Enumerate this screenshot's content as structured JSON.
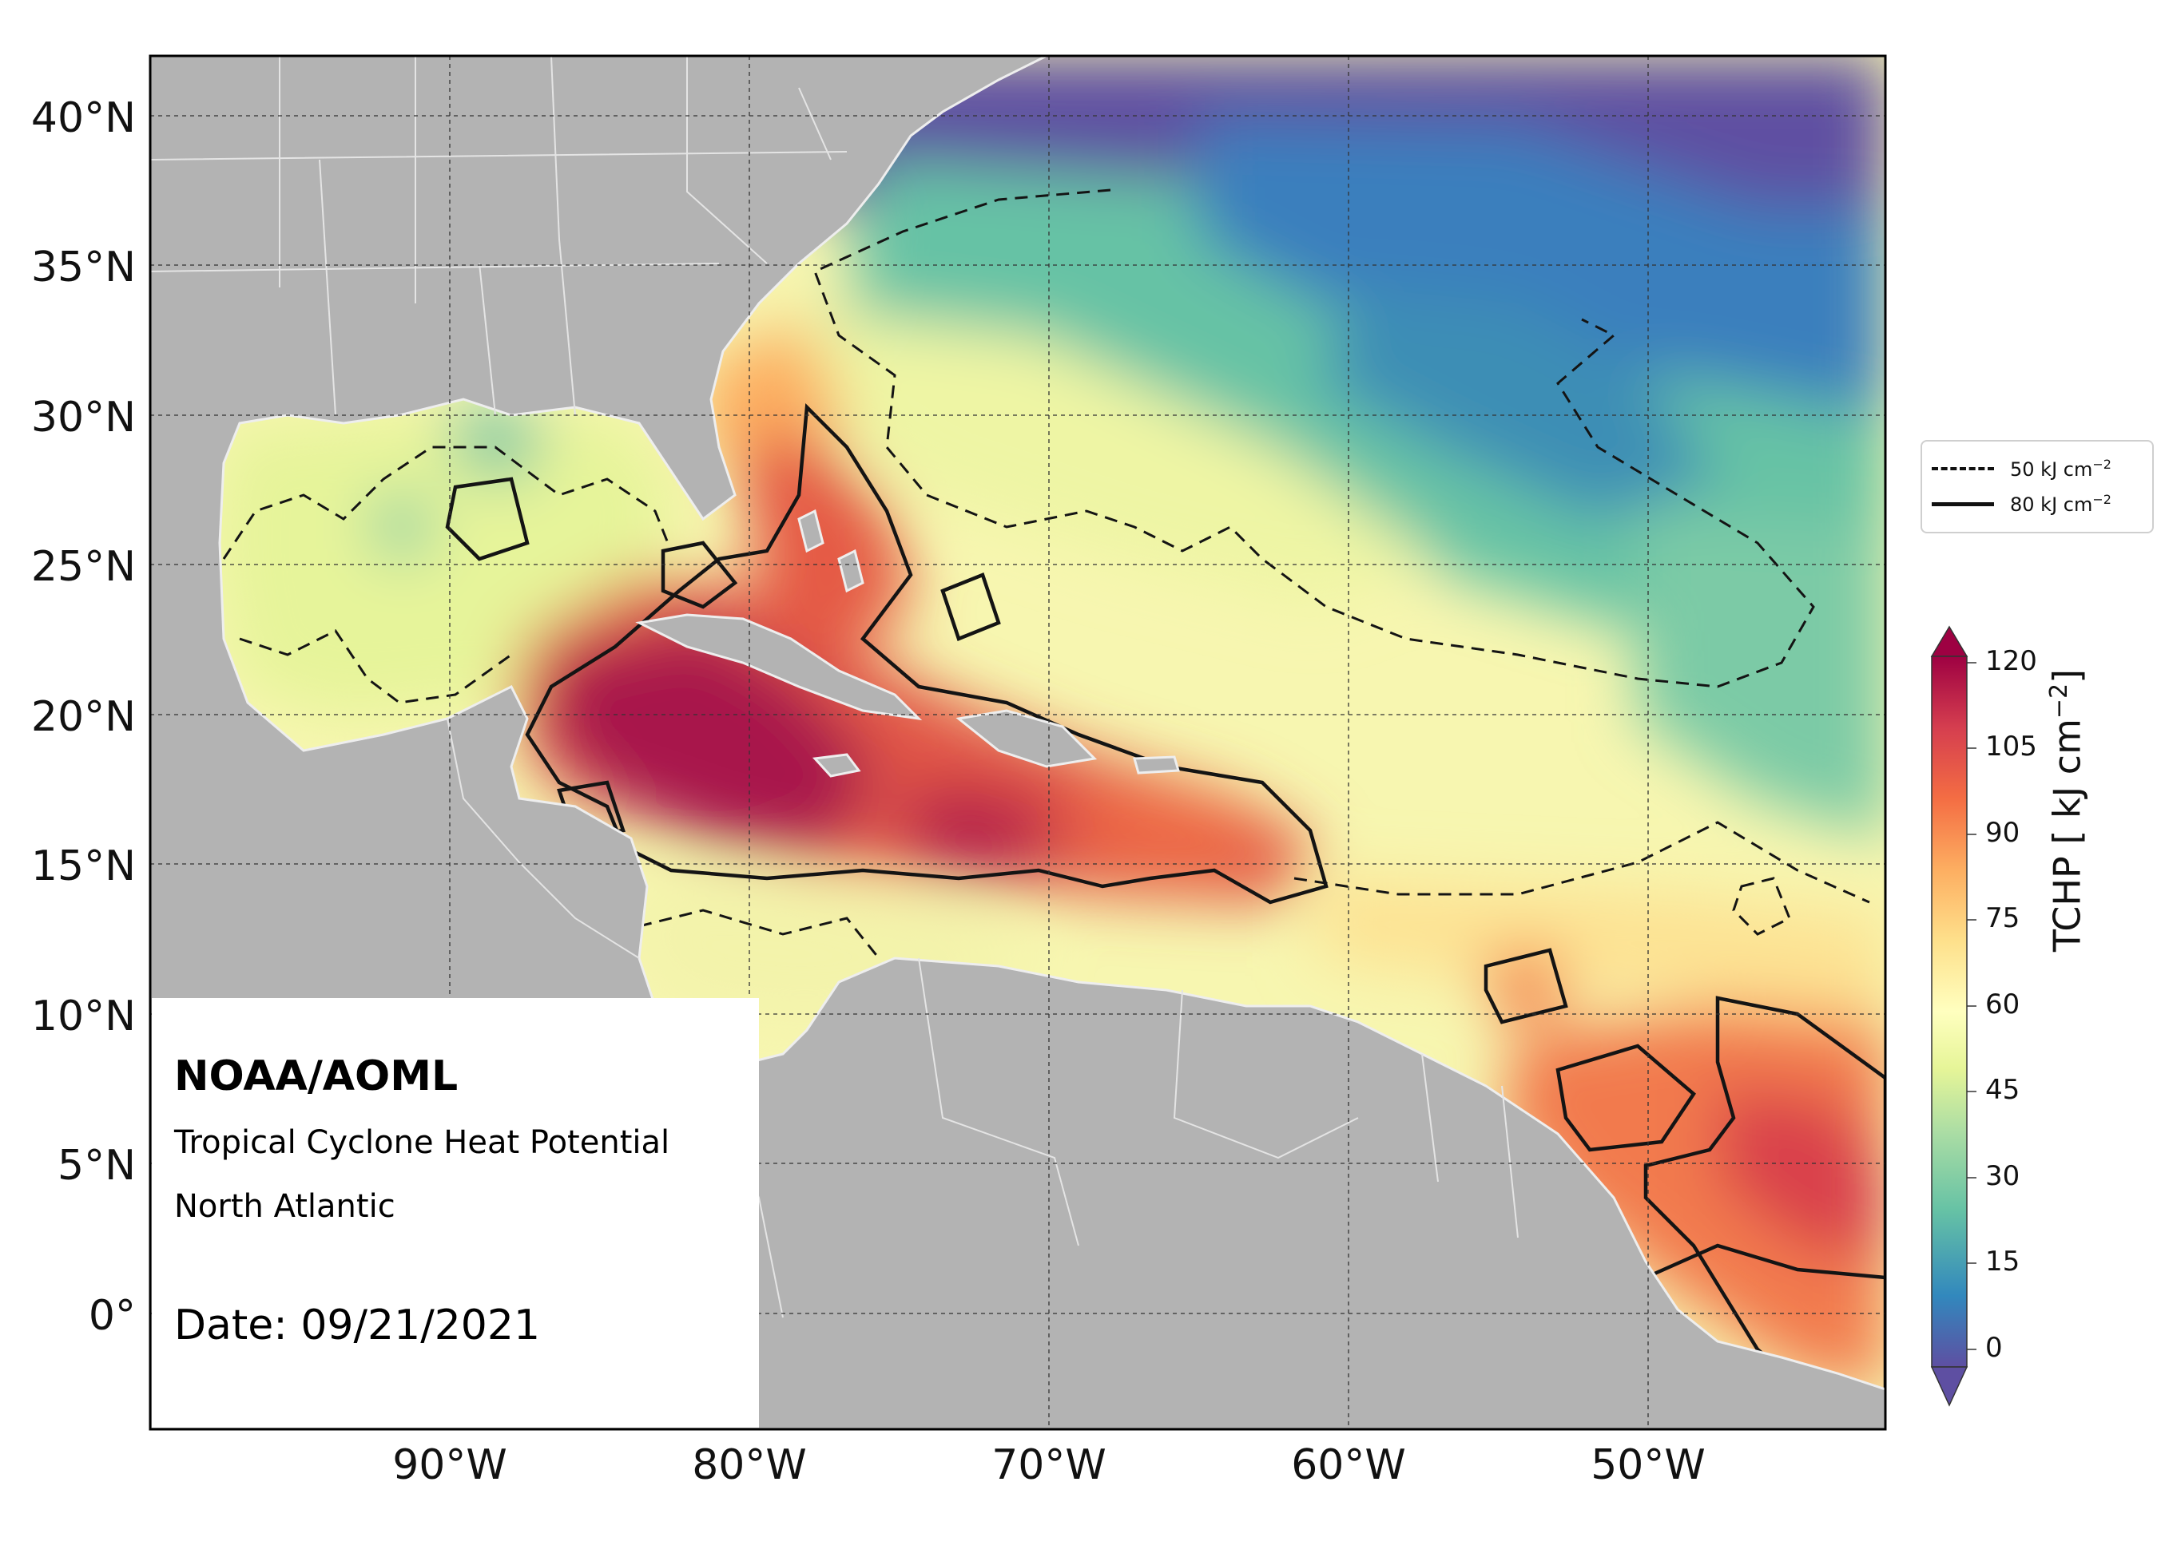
{
  "map": {
    "title": "NOAA/AOML",
    "product": "Tropical Cyclone Heat Potential",
    "region": "North Atlantic",
    "date_label": "Date: 09/21/2021",
    "extent": {
      "lon_min": -100,
      "lon_max": -42,
      "lat_min": -4,
      "lat_max": 42
    },
    "lat_ticks": [
      {
        "value": 40,
        "label": "40°N"
      },
      {
        "value": 35,
        "label": "35°N"
      },
      {
        "value": 30,
        "label": "30°N"
      },
      {
        "value": 25,
        "label": "25°N"
      },
      {
        "value": 20,
        "label": "20°N"
      },
      {
        "value": 15,
        "label": "15°N"
      },
      {
        "value": 10,
        "label": "10°N"
      },
      {
        "value": 5,
        "label": "5°N"
      },
      {
        "value": 0,
        "label": "0°"
      }
    ],
    "lon_ticks": [
      {
        "value": -90,
        "label": "90°W"
      },
      {
        "value": -80,
        "label": "80°W"
      },
      {
        "value": -70,
        "label": "70°W"
      },
      {
        "value": -60,
        "label": "60°W"
      },
      {
        "value": -50,
        "label": "50°W"
      }
    ],
    "grid": true,
    "land_color": "#b3b3b3",
    "border_color": "#eeeeee"
  },
  "legend": {
    "placement": "right",
    "items": [
      {
        "label": "50 kJ cm",
        "sup": "−2",
        "style": "dashed"
      },
      {
        "label": "80 kJ cm",
        "sup": "−2",
        "style": "solid"
      }
    ]
  },
  "colorbar": {
    "label": "TCHP [ kJ cm",
    "label_sup": "−2",
    "label_end": "]",
    "min": 0,
    "max": 120,
    "ticks": [
      0,
      15,
      30,
      45,
      60,
      75,
      90,
      105,
      120
    ],
    "tick_labels": [
      "0",
      "15",
      "30",
      "45",
      "60",
      "75",
      "90",
      "105",
      "120"
    ],
    "extend": "both",
    "palette": [
      "#5e4fa2",
      "#3288bd",
      "#66c2a5",
      "#abdda4",
      "#e6f598",
      "#ffffbf",
      "#fee08b",
      "#fdae61",
      "#f46d43",
      "#d53e4f",
      "#9e0142"
    ]
  }
}
